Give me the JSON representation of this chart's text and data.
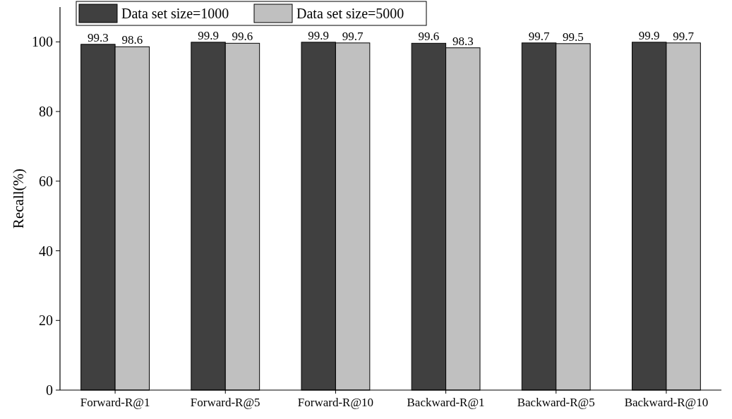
{
  "chart_data": {
    "type": "bar",
    "ylabel": "Recall(%)",
    "categories": [
      "Forward-R@1",
      "Forward-R@5",
      "Forward-R@10",
      "Backward-R@1",
      "Backward-R@5",
      "Backward-R@10"
    ],
    "series": [
      {
        "name": "Data set size=1000",
        "color": "#404040",
        "values": [
          99.3,
          99.9,
          99.9,
          99.6,
          99.7,
          99.9
        ]
      },
      {
        "name": "Data set size=5000",
        "color": "#c0c0c0",
        "values": [
          98.6,
          99.6,
          99.7,
          98.3,
          99.5,
          99.7
        ]
      }
    ],
    "ylim": [
      0,
      110
    ],
    "yticks": [
      0,
      20,
      40,
      60,
      80,
      100
    ],
    "data_labels": true,
    "legend": "top left",
    "grid": false
  }
}
